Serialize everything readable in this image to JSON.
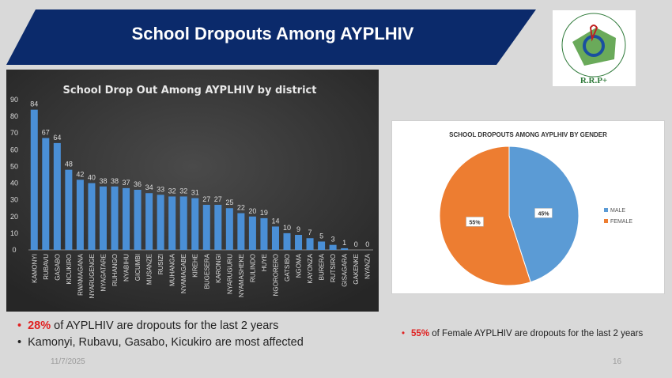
{
  "slide": {
    "title": "School Dropouts Among AYPLHIV",
    "date": "11/7/2025",
    "page_number": "16",
    "logo_text": "RESEAU RWANDAIS DES PERSONNES VIVANT AVEC LE VIH / SIDA",
    "logo_abbr": "R.R.P+"
  },
  "colors": {
    "banner": "#0b2a6b",
    "bar": "#4a8fd6",
    "male": "#5b9bd5",
    "female": "#ed7d31",
    "accent": "#e02020"
  },
  "bullets": [
    {
      "highlight": "28%",
      "text": " of AYPLHIV are dropouts for the last 2 years"
    },
    {
      "highlight": "",
      "text": "Kamonyi, Rubavu, Gasabo, Kicukiro are most affected"
    },
    {
      "highlight": "55%",
      "text": " of Female AYPLHIV are dropouts for the last 2 years"
    }
  ],
  "chart_data": [
    {
      "type": "bar",
      "title": "School Drop Out Among AYPLHIV by district",
      "ylim": [
        0,
        90
      ],
      "yticks": [
        0,
        10,
        20,
        30,
        40,
        50,
        60,
        70,
        80,
        90
      ],
      "grid": false,
      "categories": [
        "KAMONYI",
        "RUBAVU",
        "GASABO",
        "KICUKIRO",
        "RWAMAGANA",
        "NYARUGENGE",
        "NYAGATARE",
        "RUHANGO",
        "NYABIHU",
        "GICUMBI",
        "MUSANZE",
        "RUSIZI",
        "MUHANGA",
        "NYAMAGABE",
        "KIREHE",
        "BUGESERA",
        "KARONGI",
        "NYARUGURU",
        "NYAMASHEKE",
        "RULINDO",
        "HUYE",
        "NGORORERO",
        "GATSIBO",
        "NGOMA",
        "KAYONZA",
        "BURERA",
        "RUTSIRO",
        "GISAGARA",
        "GAKENKE",
        "NYANZA"
      ],
      "values": [
        84,
        67,
        64,
        48,
        42,
        40,
        38,
        38,
        37,
        36,
        34,
        33,
        32,
        32,
        31,
        27,
        27,
        25,
        22,
        20,
        19,
        14,
        10,
        9,
        7,
        5,
        3,
        1,
        0,
        0
      ]
    },
    {
      "type": "pie",
      "title": "SCHOOL DROPOUTS AMONG AYPLHIV BY GENDER",
      "legend": "right",
      "slices": [
        {
          "label": "MALE",
          "value": 45,
          "text": "45%"
        },
        {
          "label": "FEMALE",
          "value": 55,
          "text": "55%"
        }
      ]
    }
  ]
}
